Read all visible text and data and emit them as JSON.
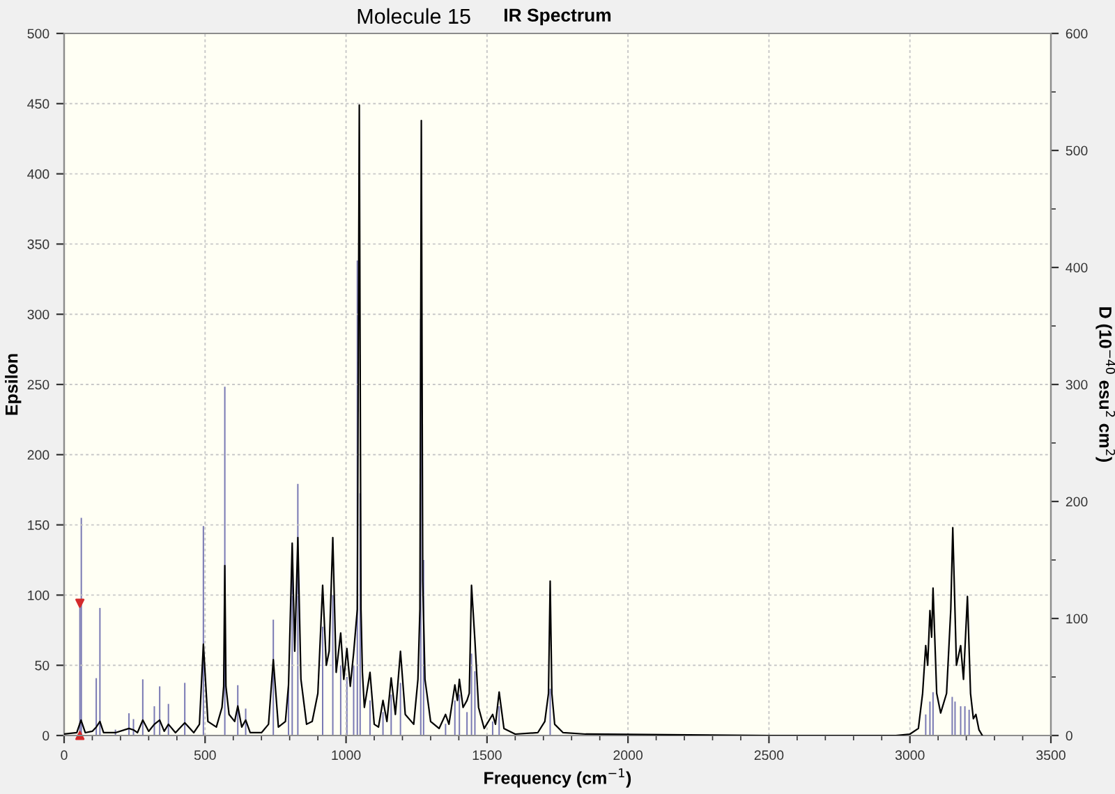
{
  "chart_data": {
    "type": "line",
    "title": "IR Spectrum",
    "subtitle": "Molecule 15",
    "xlabel": "Frequency (cm$^{−1}$)",
    "ylabel": "Epsilon",
    "y2label": "D (10$^{−40}$ esu$^{2}$ cm$^{2}$)",
    "xlim": [
      0,
      3500
    ],
    "xticks": [
      0,
      {
        "value": 100,
        "label": null
      },
      {
        "value": 200,
        "label": null
      },
      {
        "value": 300,
        "label": null
      },
      {
        "value": 400,
        "label": null
      },
      500,
      {
        "value": 600,
        "label": null
      },
      {
        "value": 700,
        "label": null
      },
      {
        "value": 800,
        "label": null
      },
      {
        "value": 900,
        "label": null
      },
      1000,
      {
        "value": 1100,
        "label": null
      },
      {
        "value": 1200,
        "label": null
      },
      {
        "value": 1300,
        "label": null
      },
      {
        "value": 1400,
        "label": null
      },
      1500,
      {
        "value": 1600,
        "label": null
      },
      {
        "value": 1700,
        "label": null
      },
      {
        "value": 1800,
        "label": null
      },
      {
        "value": 1900,
        "label": null
      },
      2000,
      {
        "value": 2100,
        "label": null
      },
      {
        "value": 2200,
        "label": null
      },
      {
        "value": 2300,
        "label": null
      },
      {
        "value": 2400,
        "label": null
      },
      2500,
      {
        "value": 2600,
        "label": null
      },
      {
        "value": 2700,
        "label": null
      },
      {
        "value": 2800,
        "label": null
      },
      {
        "value": 2900,
        "label": null
      },
      3000,
      {
        "value": 3100,
        "label": null
      },
      {
        "value": 3200,
        "label": null
      },
      {
        "value": 3300,
        "label": null
      },
      {
        "value": 3400,
        "label": null
      },
      3500
    ],
    "ylim": [
      0,
      500
    ],
    "yticks": [
      0,
      50,
      100,
      150,
      200,
      250,
      300,
      350,
      400,
      450,
      500
    ],
    "y2lim": [
      0,
      600
    ],
    "y2ticks": [
      0,
      {
        "value": 50,
        "label": null
      },
      100,
      {
        "value": 150,
        "label": null
      },
      200,
      {
        "value": 250,
        "label": null
      },
      300,
      {
        "value": 350,
        "label": null
      },
      400,
      {
        "value": 450,
        "label": null
      },
      500,
      {
        "value": 550,
        "label": null
      },
      600
    ],
    "grid": true,
    "series": [
      {
        "type": "bar",
        "axis": "y2",
        "color": "#7a7ab4",
        "x": [
          56,
          61,
          114,
          127,
          182,
          230,
          246,
          279,
          320,
          339,
          370,
          428,
          494,
          570,
          616,
          644,
          742,
          796,
          809,
          829,
          917,
          953,
          981,
          1003,
          1027,
          1040,
          1050,
          1085,
          1131,
          1160,
          1193,
          1265,
          1275,
          1353,
          1386,
          1402,
          1429,
          1445,
          1457,
          1520,
          1543,
          1724,
          3056,
          3071,
          3082,
          3150,
          3160,
          3180,
          3195,
          3210
        ],
        "values": [
          113,
          186,
          49,
          109,
          5,
          19,
          14,
          48,
          25,
          42,
          27,
          45,
          179,
          298,
          43,
          23,
          99,
          43,
          140,
          215,
          93,
          120,
          60,
          50,
          60,
          406,
          207,
          30,
          20,
          35,
          45,
          356,
          150,
          10,
          30,
          35,
          20,
          70,
          55,
          12,
          25,
          40,
          18,
          29,
          37,
          33,
          29,
          25,
          25,
          22
        ]
      },
      {
        "color": "#000000",
        "x": [
          0,
          45,
          60,
          75,
          100,
          114,
          127,
          140,
          182,
          230,
          246,
          260,
          279,
          300,
          320,
          339,
          355,
          370,
          395,
          428,
          460,
          480,
          494,
          510,
          540,
          560,
          566,
          570,
          574,
          585,
          605,
          616,
          630,
          644,
          660,
          700,
          725,
          742,
          760,
          785,
          796,
          809,
          818,
          829,
          840,
          860,
          880,
          900,
          917,
          930,
          940,
          953,
          965,
          981,
          992,
          1003,
          1015,
          1027,
          1040,
          1047,
          1053,
          1058,
          1065,
          1085,
          1100,
          1115,
          1131,
          1145,
          1160,
          1175,
          1193,
          1210,
          1240,
          1255,
          1262,
          1267,
          1272,
          1280,
          1300,
          1330,
          1353,
          1365,
          1386,
          1395,
          1402,
          1415,
          1429,
          1437,
          1445,
          1457,
          1470,
          1490,
          1520,
          1530,
          1543,
          1560,
          1600,
          1680,
          1705,
          1718,
          1724,
          1730,
          1740,
          1770,
          1850,
          2500,
          2950,
          3000,
          3030,
          3045,
          3056,
          3063,
          3071,
          3077,
          3082,
          3095,
          3109,
          3130,
          3145,
          3152,
          3165,
          3180,
          3190,
          3204,
          3215,
          3225,
          3234,
          3245,
          3257
        ],
        "values": [
          1,
          2,
          11,
          2,
          3,
          6,
          10,
          2,
          2,
          5,
          4,
          2,
          11,
          3,
          8,
          11,
          3,
          8,
          2,
          9,
          2,
          8,
          65,
          10,
          6,
          20,
          35,
          121,
          35,
          15,
          10,
          21,
          6,
          11,
          2,
          2,
          8,
          54,
          6,
          10,
          36,
          137,
          60,
          141,
          40,
          8,
          10,
          30,
          107,
          50,
          60,
          141,
          45,
          73,
          40,
          62,
          35,
          59,
          90,
          449,
          90,
          45,
          20,
          45,
          8,
          6,
          25,
          10,
          41,
          15,
          60,
          15,
          8,
          40,
          90,
          438,
          110,
          40,
          10,
          5,
          15,
          8,
          36,
          25,
          40,
          20,
          25,
          30,
          107,
          68,
          20,
          5,
          15,
          8,
          31,
          5,
          1,
          2,
          10,
          30,
          110,
          30,
          8,
          2,
          1,
          0,
          0,
          1,
          5,
          30,
          64,
          50,
          89,
          70,
          105,
          30,
          16,
          30,
          90,
          148,
          50,
          64,
          40,
          99,
          30,
          12,
          15,
          4,
          0
        ]
      },
      {
        "type": "scatter",
        "axis": "y2",
        "color": "#d42a2a",
        "marker": "triangle",
        "x": [
          56,
          56
        ],
        "values": [
          113,
          0
        ]
      }
    ]
  }
}
